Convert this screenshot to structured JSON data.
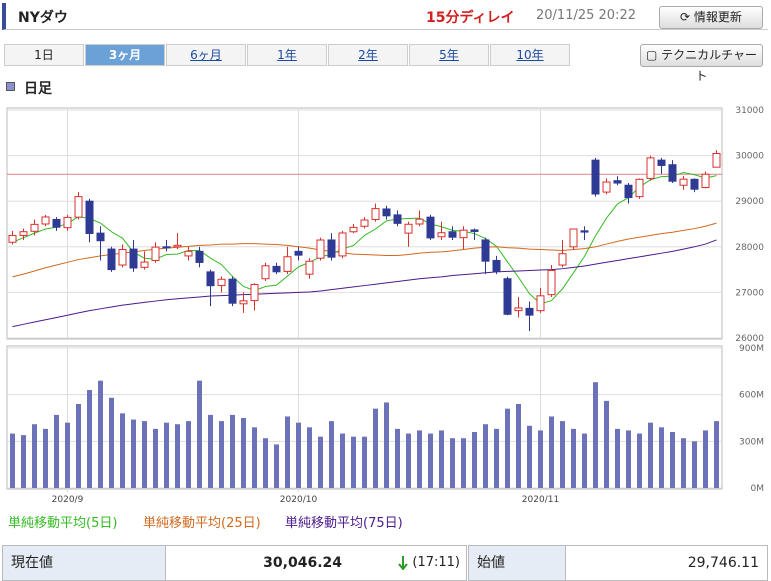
{
  "header": {
    "title": "NYダウ",
    "delay": "15分ディレイ",
    "timestamp": "20/11/25 20:22",
    "refresh": "情報更新"
  },
  "tabs": [
    "1日",
    "3ヶ月",
    "6ヶ月",
    "1年",
    "2年",
    "5年",
    "10年"
  ],
  "active_tab": 1,
  "technical_button": "テクニカルチャート",
  "section_label": "日足",
  "chart_data": {
    "type": "candlestick",
    "categories": [
      null,
      null,
      null,
      null,
      null,
      "2020/9",
      null,
      null,
      null,
      null,
      null,
      null,
      null,
      null,
      null,
      null,
      null,
      null,
      null,
      null,
      null,
      null,
      null,
      null,
      null,
      null,
      "2020/10",
      null,
      null,
      null,
      null,
      null,
      null,
      null,
      null,
      null,
      null,
      null,
      null,
      null,
      null,
      null,
      null,
      null,
      null,
      null,
      null,
      null,
      "2020/11",
      null,
      null,
      null,
      null,
      null,
      null,
      null,
      null,
      null,
      null,
      null,
      null,
      null,
      null,
      null,
      null
    ],
    "open": [
      28100,
      28250,
      28340,
      28500,
      28600,
      28420,
      28650,
      29000,
      28300,
      27950,
      27600,
      27950,
      27550,
      27700,
      28000,
      28000,
      27800,
      27900,
      27450,
      27150,
      27290,
      26750,
      26820,
      27300,
      27570,
      27460,
      27900,
      27400,
      27750,
      28150,
      27800,
      28330,
      28450,
      28600,
      28830,
      28700,
      28300,
      28500,
      28650,
      28220,
      28330,
      28200,
      28370,
      28150,
      27700,
      27300,
      26600,
      26650,
      26600,
      26950,
      27600,
      28000,
      28350,
      29900,
      29200,
      29450,
      29350,
      29100,
      29500,
      29900,
      29800,
      29350,
      29480,
      29300,
      29746
    ],
    "high": [
      28350,
      28400,
      28600,
      28700,
      28650,
      28700,
      29200,
      29050,
      28450,
      28000,
      28050,
      28150,
      27900,
      28100,
      28150,
      28300,
      28000,
      28000,
      27500,
      27350,
      27350,
      27000,
      27200,
      27650,
      27650,
      28000,
      28000,
      27750,
      28200,
      28300,
      28350,
      28500,
      28650,
      28950,
      28900,
      28800,
      28550,
      28800,
      28700,
      28550,
      28450,
      28450,
      28400,
      28200,
      27800,
      27350,
      26900,
      26800,
      27100,
      27600,
      28150,
      28400,
      28450,
      29950,
      29500,
      29550,
      29400,
      29500,
      30000,
      29950,
      29900,
      29550,
      29500,
      29650,
      30116
    ],
    "low": [
      28050,
      28150,
      28250,
      28450,
      28350,
      28350,
      28600,
      28100,
      27700,
      27450,
      27550,
      27450,
      27500,
      27650,
      27900,
      27950,
      27700,
      27550,
      26700,
      27000,
      26700,
      26550,
      26600,
      27250,
      27400,
      27400,
      27700,
      27300,
      27700,
      27700,
      27750,
      28300,
      28400,
      28550,
      28600,
      28450,
      28000,
      28450,
      28150,
      28150,
      28150,
      27950,
      28150,
      27400,
      27400,
      26500,
      26450,
      26150,
      26550,
      26900,
      27550,
      27950,
      28150,
      29100,
      29150,
      29350,
      28950,
      29050,
      29450,
      29600,
      29400,
      29250,
      29200,
      29280,
      29746
    ],
    "close": [
      28249,
      28331,
      28492,
      28654,
      28430,
      28645,
      29100,
      28292,
      28133,
      27500,
      27940,
      27535,
      27666,
      27993,
      27995,
      28032,
      27902,
      27657,
      27147,
      27288,
      26763,
      26815,
      27174,
      27584,
      27452,
      27782,
      27817,
      27683,
      28149,
      27773,
      28303,
      28426,
      28587,
      28838,
      28680,
      28514,
      28494,
      28606,
      28195,
      28309,
      28211,
      28364,
      28336,
      27685,
      27463,
      26520,
      26659,
      26502,
      26925,
      27481,
      27848,
      28390,
      28323,
      29158,
      29421,
      29398,
      29080,
      29480,
      29950,
      29784,
      29438,
      29483,
      29263,
      29591,
      30046
    ],
    "up_color": "#d9302c",
    "down_color": "#2f3a94",
    "reference_line": 29591,
    "reference_color": "#e08080",
    "ylim": [
      26000,
      31000
    ],
    "yticks": [
      26000,
      27000,
      28000,
      29000,
      30000,
      31000
    ],
    "grid": true,
    "series": [
      {
        "name": "単純移動平均(5日)",
        "color": "#33bb22",
        "values": [
          28100,
          28200,
          28300,
          28390,
          28430,
          28510,
          28660,
          28620,
          28520,
          28330,
          28190,
          27880,
          27750,
          27730,
          27830,
          27840,
          27920,
          27920,
          27750,
          27610,
          27350,
          27130,
          27040,
          27130,
          27160,
          27360,
          27560,
          27660,
          27780,
          27840,
          27950,
          28030,
          28250,
          28390,
          28570,
          28610,
          28620,
          28630,
          28500,
          28440,
          28360,
          28340,
          28290,
          28180,
          28010,
          27670,
          27330,
          26970,
          26750,
          26820,
          27080,
          27430,
          27790,
          28240,
          28630,
          28940,
          29080,
          29310,
          29470,
          29540,
          29550,
          29630,
          29580,
          29510,
          29560
        ]
      },
      {
        "name": "単純移動平均(25日)",
        "color": "#d2691e",
        "values": [
          27340,
          27400,
          27470,
          27540,
          27600,
          27660,
          27720,
          27760,
          27800,
          27830,
          27860,
          27890,
          27920,
          27950,
          27970,
          27990,
          28010,
          28030,
          28040,
          28060,
          28060,
          28070,
          28070,
          28060,
          28050,
          28030,
          28000,
          27970,
          27930,
          27900,
          27870,
          27840,
          27830,
          27820,
          27810,
          27810,
          27830,
          27860,
          27880,
          27890,
          27910,
          27940,
          27970,
          27990,
          28000,
          27980,
          27970,
          27950,
          27940,
          27930,
          27920,
          27940,
          27960,
          28000,
          28060,
          28120,
          28170,
          28210,
          28250,
          28290,
          28320,
          28360,
          28400,
          28450,
          28520
        ]
      },
      {
        "name": "単純移動平均(75日)",
        "color": "#4b1a8c",
        "values": [
          26250,
          26300,
          26350,
          26400,
          26450,
          26500,
          26550,
          26600,
          26640,
          26680,
          26720,
          26750,
          26780,
          26810,
          26840,
          26860,
          26880,
          26900,
          26920,
          26930,
          26940,
          26950,
          26960,
          26970,
          26980,
          26990,
          27000,
          27010,
          27030,
          27060,
          27090,
          27120,
          27150,
          27180,
          27210,
          27240,
          27270,
          27300,
          27320,
          27340,
          27370,
          27390,
          27410,
          27430,
          27450,
          27460,
          27470,
          27480,
          27490,
          27500,
          27520,
          27550,
          27580,
          27620,
          27660,
          27700,
          27740,
          27780,
          27820,
          27860,
          27900,
          27950,
          28000,
          28060,
          28150
        ]
      }
    ],
    "volume": {
      "color": "#6b72b8",
      "ylim": [
        0,
        900
      ],
      "yticks": [
        {
          "value": 0,
          "label": "0M"
        },
        {
          "value": 300,
          "label": "300M"
        },
        {
          "value": 600,
          "label": "600M"
        },
        {
          "value": 900,
          "label": "900M"
        }
      ],
      "values": [
        350,
        340,
        410,
        380,
        470,
        420,
        540,
        630,
        690,
        580,
        480,
        440,
        430,
        380,
        420,
        410,
        430,
        690,
        470,
        430,
        470,
        450,
        390,
        320,
        280,
        460,
        420,
        390,
        330,
        430,
        350,
        330,
        330,
        510,
        550,
        380,
        350,
        370,
        350,
        370,
        320,
        320,
        360,
        410,
        380,
        510,
        540,
        400,
        370,
        460,
        430,
        380,
        350,
        680,
        560,
        380,
        370,
        350,
        420,
        390,
        360,
        320,
        300,
        370,
        430
      ]
    }
  },
  "quote": {
    "label": "現在値",
    "value": "30,046.24",
    "time": "(17:11)",
    "open_label": "始値",
    "open_value": "29,746.11"
  }
}
